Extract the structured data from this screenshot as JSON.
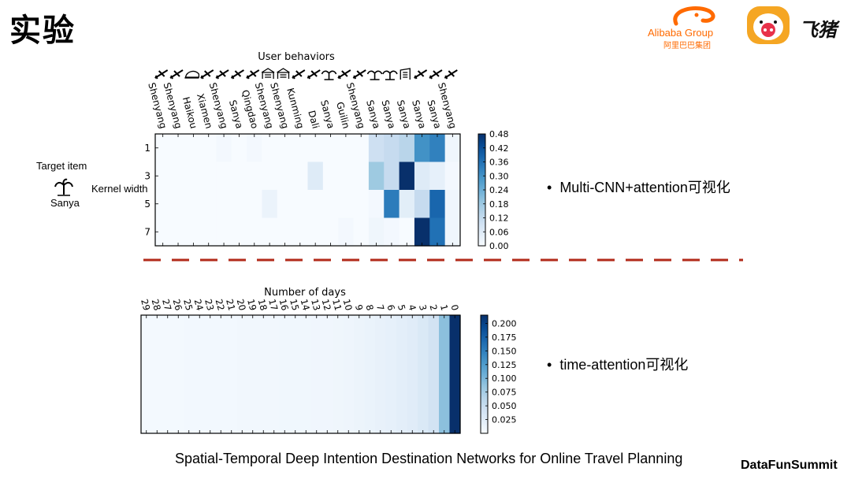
{
  "title": "实验",
  "logos": {
    "alibaba_text": "Alibaba Group",
    "alibaba_cn": "阿里巴巴集团",
    "feizhu": "飞猪",
    "alibaba_color": "#ff6a00",
    "pig_color": "#f5a623"
  },
  "bullets": {
    "b1": "Multi-CNN+attention可视化",
    "b2": "time-attention可视化"
  },
  "side_labels": {
    "target_item": "Target item",
    "target_city": "Sanya",
    "kernel_width": "Kernel width"
  },
  "footer": {
    "caption": "Spatial-Temporal Deep Intention Destination Networks for Online Travel Planning",
    "brand": "DataFunSummit"
  },
  "divider_color": "#b22a1a",
  "chart_data": [
    {
      "type": "heatmap",
      "title": "User behaviors",
      "xlabel": "",
      "ylabel": "Kernel width",
      "colormap": "Blues",
      "x_categories": [
        "Shenyang",
        "Shenyang",
        "Haikou",
        "Xiamen",
        "Shenyang",
        "Sanya",
        "Qingdao",
        "Shenyang",
        "Shenyang",
        "Kunming",
        "Dali",
        "Sanya",
        "Guilin",
        "Shenyang",
        "Sanya",
        "Sanya",
        "Sanya",
        "Sanya",
        "Sanya",
        "Shenyang"
      ],
      "x_icons": [
        "plane-icon",
        "plane-icon",
        "train-icon",
        "plane-icon",
        "plane-icon",
        "plane-icon",
        "plane-icon",
        "hotel-icon",
        "hotel-icon",
        "plane-icon",
        "plane-icon",
        "palm-tree-icon",
        "plane-icon",
        "plane-icon",
        "palm-tree-icon",
        "palm-tree-icon",
        "building-icon",
        "plane-icon",
        "plane-icon",
        "plane-icon"
      ],
      "y_categories": [
        "1",
        "3",
        "5",
        "7"
      ],
      "y_ticks_shown": [
        "1",
        "3",
        "5",
        "7"
      ],
      "values": [
        [
          0.0,
          0.0,
          0.0,
          0.0,
          0.01,
          0.0,
          0.01,
          0.0,
          0.0,
          0.0,
          0.0,
          0.0,
          0.0,
          0.0,
          0.1,
          0.12,
          0.14,
          0.3,
          0.33,
          0.02
        ],
        [
          0.0,
          0.0,
          0.0,
          0.0,
          0.0,
          0.0,
          0.0,
          0.0,
          0.0,
          0.0,
          0.06,
          0.0,
          0.0,
          0.0,
          0.18,
          0.12,
          0.48,
          0.06,
          0.04,
          0.01
        ],
        [
          0.0,
          0.0,
          0.0,
          0.0,
          0.0,
          0.0,
          0.0,
          0.03,
          0.0,
          0.0,
          0.0,
          0.0,
          0.0,
          0.0,
          0.01,
          0.34,
          0.05,
          0.12,
          0.38,
          0.02
        ],
        [
          0.0,
          0.0,
          0.0,
          0.0,
          0.0,
          0.0,
          0.0,
          0.0,
          0.0,
          0.0,
          0.0,
          0.0,
          0.01,
          0.0,
          0.02,
          0.01,
          0.0,
          0.48,
          0.36,
          0.02
        ]
      ],
      "colorbar": {
        "min": 0.0,
        "max": 0.48,
        "ticks": [
          "0.48",
          "0.42",
          "0.36",
          "0.30",
          "0.24",
          "0.18",
          "0.12",
          "0.06",
          "0.00"
        ]
      }
    },
    {
      "type": "heatmap",
      "title": "Number of days",
      "xlabel": "",
      "ylabel": "",
      "colormap": "Blues",
      "x_categories": [
        "29",
        "28",
        "27",
        "26",
        "25",
        "24",
        "23",
        "22",
        "21",
        "20",
        "19",
        "18",
        "17",
        "16",
        "15",
        "14",
        "13",
        "12",
        "11",
        "10",
        "9",
        "8",
        "7",
        "6",
        "5",
        "4",
        "3",
        "2",
        "1",
        "0"
      ],
      "values": [
        [
          0.004,
          0.004,
          0.004,
          0.004,
          0.005,
          0.005,
          0.005,
          0.005,
          0.005,
          0.006,
          0.006,
          0.006,
          0.006,
          0.007,
          0.007,
          0.007,
          0.008,
          0.008,
          0.009,
          0.01,
          0.012,
          0.014,
          0.016,
          0.018,
          0.021,
          0.025,
          0.031,
          0.04,
          0.09,
          0.215
        ]
      ],
      "colorbar": {
        "min": 0.0,
        "max": 0.215,
        "ticks": [
          "0.200",
          "0.175",
          "0.150",
          "0.125",
          "0.100",
          "0.075",
          "0.050",
          "0.025"
        ]
      }
    }
  ]
}
